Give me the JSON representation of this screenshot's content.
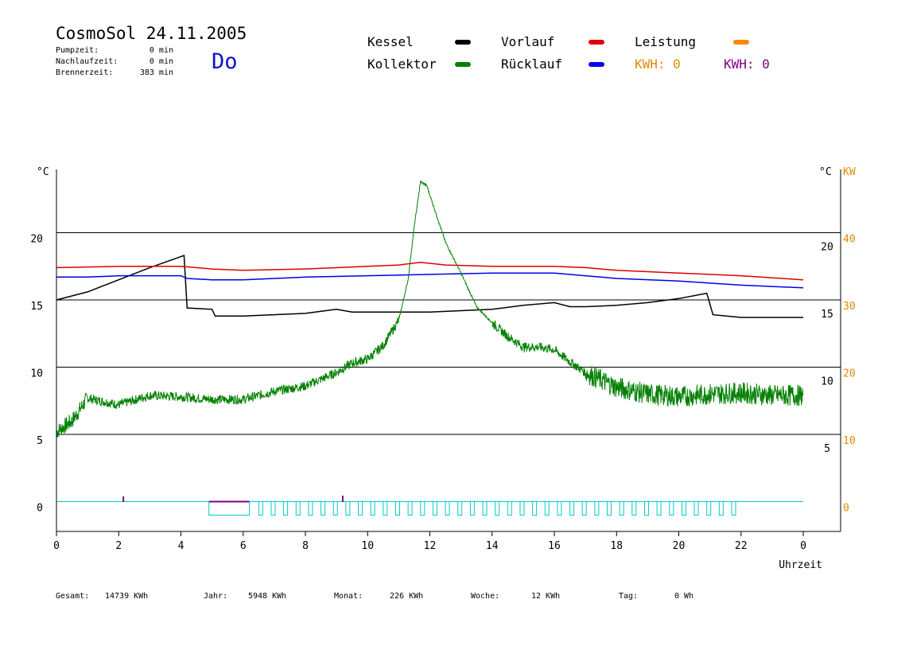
{
  "header": {
    "title": "CosmoSol 24.11.2005",
    "stats": [
      {
        "label": "Pumpzeit:",
        "value": "0 min"
      },
      {
        "label": "Nachlaufzeit:",
        "value": "0 min"
      },
      {
        "label": "Brennerzeit:",
        "value": "383 min"
      }
    ],
    "day": "Do"
  },
  "legend": {
    "items": [
      {
        "label": "Kessel",
        "color": "#000000"
      },
      {
        "label": "Vorlauf",
        "color": "#dd0000"
      },
      {
        "label": "Leistung",
        "color": "#ff8800"
      },
      {
        "label": "Kollektor",
        "color": "#008000"
      },
      {
        "label": "Rücklauf",
        "color": "#0000ee"
      }
    ],
    "kwh1": "KWH: 0",
    "kwh1_color": "#e08a00",
    "kwh2": "KWH: 0",
    "kwh2_color": "#800080"
  },
  "footer": [
    {
      "label": "Gesamt:",
      "value": "14739 KWh"
    },
    {
      "label": "Jahr:",
      "value": "5948 KWh"
    },
    {
      "label": "Monat:",
      "value": "226 KWh"
    },
    {
      "label": "Woche:",
      "value": "12 KWh"
    },
    {
      "label": "Tag:",
      "value": "0 Wh"
    }
  ],
  "chart_data": {
    "type": "line",
    "xlabel": "Uhrzeit",
    "ylabel_left": "°C",
    "ylabel_right": "°C",
    "ylabel_right2": "KW",
    "xlim": [
      0,
      24
    ],
    "ylim": [
      -2,
      25
    ],
    "x_ticks": [
      "0",
      "2",
      "4",
      "6",
      "8",
      "10",
      "12",
      "14",
      "16",
      "18",
      "20",
      "22",
      "0"
    ],
    "y_ticks_left": [
      "0",
      "5",
      "10",
      "15",
      "20"
    ],
    "y_ticks_right": [
      "5",
      "10",
      "15",
      "20"
    ],
    "y_ticks_right2": [
      "0",
      "10",
      "20",
      "30",
      "40"
    ],
    "grid_y": [
      5,
      10,
      15,
      20
    ],
    "series": [
      {
        "name": "Kessel",
        "color": "#000000",
        "x": [
          0,
          1,
          2,
          3,
          4.1,
          4.2,
          5,
          5.1,
          6,
          8,
          9,
          9.5,
          10,
          11,
          12,
          13,
          14,
          15,
          16,
          16.5,
          17,
          18,
          19,
          20,
          20.9,
          21.1,
          22,
          24
        ],
        "y": [
          15,
          15.6,
          16.5,
          17.4,
          18.3,
          14.4,
          14.3,
          13.8,
          13.8,
          14,
          14.3,
          14.1,
          14.1,
          14.1,
          14.1,
          14.2,
          14.3,
          14.6,
          14.8,
          14.5,
          14.5,
          14.6,
          14.8,
          15.1,
          15.5,
          13.9,
          13.7,
          13.7
        ]
      },
      {
        "name": "Vorlauf",
        "color": "#dd0000",
        "x": [
          0,
          2,
          4,
          5,
          6,
          8,
          10,
          11,
          11.7,
          12.5,
          14,
          16,
          17,
          18,
          20,
          22,
          24
        ],
        "y": [
          17.4,
          17.5,
          17.5,
          17.3,
          17.2,
          17.3,
          17.5,
          17.6,
          17.8,
          17.6,
          17.5,
          17.5,
          17.4,
          17.2,
          17.0,
          16.8,
          16.5
        ]
      },
      {
        "name": "Rücklauf",
        "color": "#0000ee",
        "x": [
          0,
          1,
          2,
          4,
          4.2,
          5,
          6,
          8,
          10,
          12,
          14,
          16,
          17,
          18,
          20,
          22,
          23,
          24
        ],
        "y": [
          16.7,
          16.7,
          16.8,
          16.8,
          16.6,
          16.5,
          16.5,
          16.7,
          16.8,
          16.9,
          17,
          17,
          16.8,
          16.6,
          16.4,
          16.1,
          16.0,
          15.9
        ]
      },
      {
        "name": "Kollektor",
        "color": "#008000",
        "x": [
          0,
          0.5,
          1,
          2,
          3,
          4,
          5,
          6,
          7,
          8,
          9,
          9.5,
          10,
          10.5,
          11,
          11.3,
          11.5,
          11.7,
          11.9,
          12.1,
          12.5,
          13,
          13.5,
          14,
          14.5,
          15,
          15.5,
          16,
          16.5,
          17,
          18,
          19,
          20,
          21,
          22,
          23,
          24
        ],
        "y": [
          5.2,
          6,
          7.7,
          7.2,
          7.9,
          7.8,
          7.6,
          7.6,
          8.2,
          8.6,
          9.6,
          10.3,
          10.6,
          11.6,
          13.5,
          16.5,
          20.5,
          23.8,
          23.5,
          22.1,
          19.3,
          17,
          14.5,
          13.3,
          12.3,
          11.5,
          11.5,
          11.3,
          10.4,
          9.6,
          8.5,
          8.0,
          7.8,
          8.0,
          8.1,
          7.9,
          7.9
        ]
      }
    ]
  }
}
